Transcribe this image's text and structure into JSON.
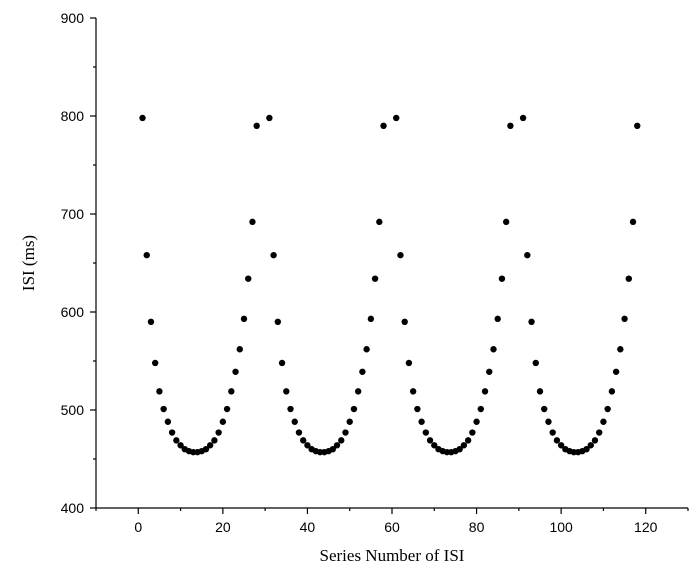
{
  "chart_data": {
    "type": "scatter",
    "title": "",
    "xlabel": "Series Number of ISI",
    "ylabel": "ISI (ms)",
    "xlim": [
      -10,
      130
    ],
    "ylim": [
      400,
      900
    ],
    "xticks": [
      0,
      20,
      40,
      60,
      80,
      100,
      120
    ],
    "yticks": [
      400,
      500,
      600,
      700,
      800,
      900
    ],
    "grid": false,
    "legend": "none",
    "marker_color": "#000000",
    "series": [
      {
        "x": [
          1,
          2,
          3,
          4,
          5,
          6,
          7,
          8,
          9,
          10,
          11,
          12,
          13,
          14,
          15,
          16,
          17,
          18,
          19,
          20,
          21,
          22,
          23,
          24,
          25,
          26,
          27,
          28,
          31,
          32,
          33,
          34,
          35,
          36,
          37,
          38,
          39,
          40,
          41,
          42,
          43,
          44,
          45,
          46,
          47,
          48,
          49,
          50,
          51,
          52,
          53,
          54,
          55,
          56,
          57,
          58,
          61,
          62,
          63,
          64,
          65,
          66,
          67,
          68,
          69,
          70,
          71,
          72,
          73,
          74,
          75,
          76,
          77,
          78,
          79,
          80,
          81,
          82,
          83,
          84,
          85,
          86,
          87,
          88,
          91,
          92,
          93,
          94,
          95,
          96,
          97,
          98,
          99,
          100,
          101,
          102,
          103,
          104,
          105,
          106,
          107,
          108,
          109,
          110,
          111,
          112,
          113,
          114,
          115,
          116,
          117,
          118
        ],
        "y": [
          798,
          658,
          590,
          548,
          519,
          501,
          488,
          477,
          469,
          464,
          460,
          458,
          457,
          457,
          458,
          460,
          464,
          469,
          477,
          488,
          501,
          519,
          539,
          562,
          593,
          634,
          692,
          790,
          798,
          658,
          590,
          548,
          519,
          501,
          488,
          477,
          469,
          464,
          460,
          458,
          457,
          457,
          458,
          460,
          464,
          469,
          477,
          488,
          501,
          519,
          539,
          562,
          593,
          634,
          692,
          790,
          798,
          658,
          590,
          548,
          519,
          501,
          488,
          477,
          469,
          464,
          460,
          458,
          457,
          457,
          458,
          460,
          464,
          469,
          477,
          488,
          501,
          519,
          539,
          562,
          593,
          634,
          692,
          790,
          798,
          658,
          590,
          548,
          519,
          501,
          488,
          477,
          469,
          464,
          460,
          458,
          457,
          457,
          458,
          460,
          464,
          469,
          477,
          488,
          501,
          519,
          539,
          562,
          593,
          634,
          692,
          790
        ]
      }
    ]
  }
}
